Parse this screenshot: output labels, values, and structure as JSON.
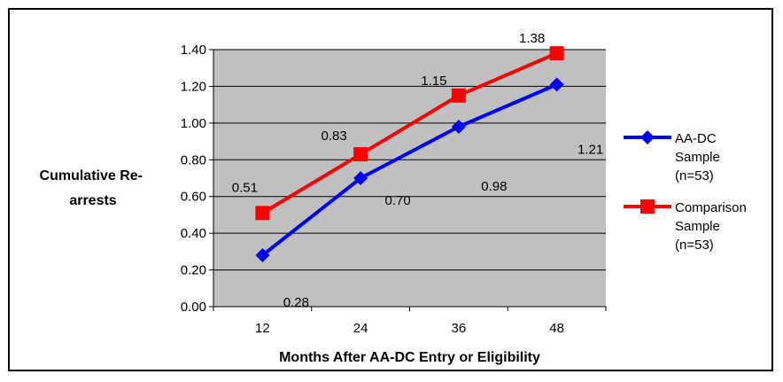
{
  "chart_data": {
    "type": "line",
    "categories": [
      "12",
      "24",
      "36",
      "48"
    ],
    "series": [
      {
        "name": "AA-DC Sample (n=53)",
        "name_lines": [
          "AA-DC",
          "Sample",
          "(n=53)"
        ],
        "values": [
          0.28,
          0.7,
          0.98,
          1.21
        ],
        "labels": [
          "0.28",
          "0.70",
          "0.98",
          "1.21"
        ],
        "color": "#0000ff",
        "marker": "diamond"
      },
      {
        "name": "Comparison Sample (n=53)",
        "name_lines": [
          "Comparison",
          "Sample",
          "(n=53)"
        ],
        "values": [
          0.51,
          0.83,
          1.15,
          1.38
        ],
        "labels": [
          "0.51",
          "0.83",
          "1.15",
          "1.38"
        ],
        "color": "#ff0000",
        "marker": "square"
      }
    ],
    "xlabel": "Months After AA-DC Entry or Eligibility",
    "ylabel_lines": [
      "Cumulative Re-",
      "arrests"
    ],
    "ylim": [
      0,
      1.4
    ],
    "yticks": [
      0,
      0.2,
      0.4,
      0.6,
      0.8,
      1.0,
      1.2,
      1.4
    ],
    "ytick_labels": [
      "0.00",
      "0.20",
      "0.40",
      "0.60",
      "0.80",
      "1.00",
      "1.20",
      "1.40"
    ],
    "plot_background": "#c0c0c0",
    "grid": true,
    "legend": "right"
  }
}
